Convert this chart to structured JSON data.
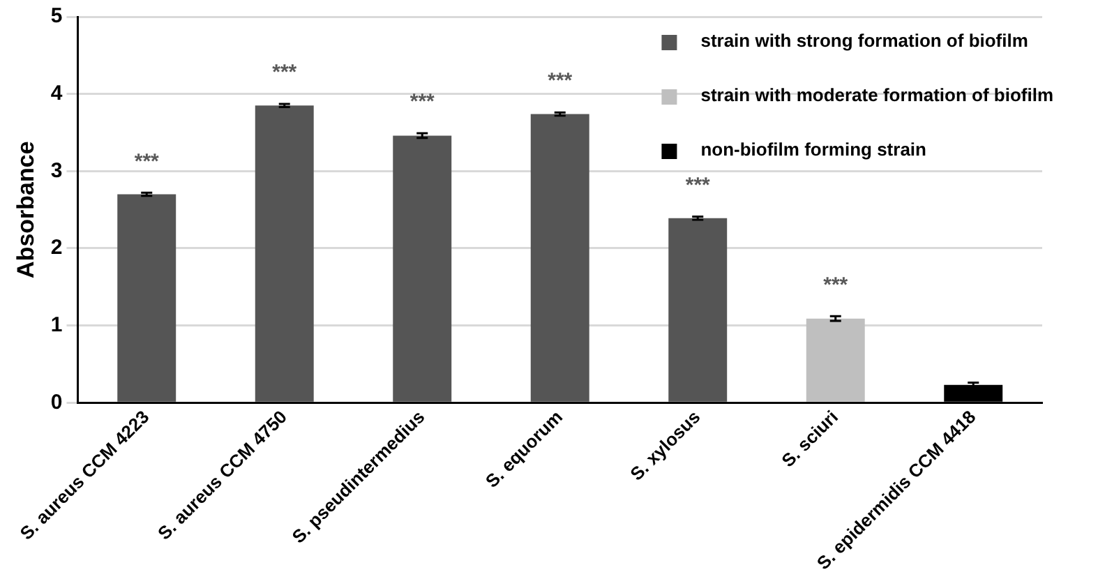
{
  "chart_data": {
    "type": "bar",
    "ylabel": "Absorbance",
    "categories": [
      "S. aureus CCM 4223",
      "S. aureus CCM 4750",
      "S. pseudintermedius",
      "S. equorum",
      "S. xylosus",
      "S. sciuri",
      "S. epidermidis CCM 4418"
    ],
    "series": [
      {
        "name": "strain with strong formation of biofilm",
        "color": "#555555",
        "values": [
          2.7,
          3.85,
          3.46,
          3.74,
          2.39,
          null,
          null
        ],
        "errors": [
          0.02,
          0.02,
          0.03,
          0.02,
          0.02,
          null,
          null
        ]
      },
      {
        "name": "strain with moderate formation of biofilm",
        "color": "#bfbfbf",
        "values": [
          null,
          null,
          null,
          null,
          null,
          1.09,
          null
        ],
        "errors": [
          null,
          null,
          null,
          null,
          null,
          0.03,
          null
        ]
      },
      {
        "name": "non-biofilm forming strain",
        "color": "#000000",
        "values": [
          null,
          null,
          null,
          null,
          null,
          null,
          0.23
        ],
        "errors": [
          null,
          null,
          null,
          null,
          null,
          null,
          0.03
        ]
      }
    ],
    "ylim": [
      0,
      5
    ],
    "yticks": [
      0,
      1,
      2,
      3,
      4,
      5
    ],
    "grid": "y",
    "legend": "top right",
    "annotations": [
      "***",
      "***",
      "***",
      "***",
      "***",
      "***"
    ]
  }
}
